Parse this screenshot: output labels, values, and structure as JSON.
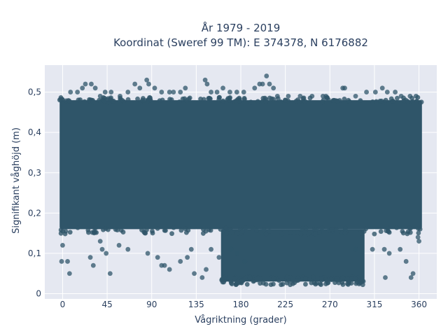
{
  "chart_data": {
    "type": "scatter",
    "title_line1": "År 1979 - 2019",
    "title_line2": "Koordinat (Sweref 99 TM): E 374378, N 6176882",
    "xlabel": "Vågriktning (grader)",
    "ylabel": "Signifikant våghöjd (m)",
    "xlim": [
      -18,
      378
    ],
    "ylim": [
      -0.013,
      0.567
    ],
    "x_ticks": [
      0,
      45,
      90,
      135,
      180,
      225,
      270,
      315,
      360
    ],
    "x_tick_labels": [
      "0",
      "45",
      "90",
      "135",
      "180",
      "225",
      "270",
      "315",
      "360"
    ],
    "y_ticks": [
      0,
      0.1,
      0.2,
      0.3,
      0.4,
      0.5
    ],
    "y_tick_labels": [
      "0",
      "0,1",
      "0,2",
      "0,3",
      "0,4",
      "0,5"
    ],
    "grid": true,
    "marker_color": "#2f5569",
    "plot_bgcolor": "#e5e8f1",
    "dense_regions": [
      {
        "x": [
          -3,
          363
        ],
        "y": [
          0.16,
          0.48
        ]
      },
      {
        "x": [
          160,
          305
        ],
        "y": [
          0.03,
          0.16
        ]
      }
    ],
    "points": [
      [
        0,
        0.12
      ],
      [
        -1,
        0.08
      ],
      [
        5,
        0.08
      ],
      [
        7,
        0.05
      ],
      [
        28,
        0.09
      ],
      [
        31,
        0.07
      ],
      [
        40,
        0.11
      ],
      [
        44,
        0.1
      ],
      [
        48,
        0.05
      ],
      [
        38,
        0.13
      ],
      [
        57,
        0.12
      ],
      [
        66,
        0.11
      ],
      [
        86,
        0.1
      ],
      [
        96,
        0.09
      ],
      [
        100,
        0.07
      ],
      [
        103,
        0.07
      ],
      [
        108,
        0.06
      ],
      [
        119,
        0.08
      ],
      [
        126,
        0.09
      ],
      [
        130,
        0.11
      ],
      [
        141,
        0.04
      ],
      [
        133,
        0.05
      ],
      [
        145,
        0.06
      ],
      [
        150,
        0.11
      ],
      [
        158,
        0.09
      ],
      [
        170,
        0.11
      ],
      [
        176,
        0.1
      ],
      [
        184,
        0.08
      ],
      [
        296,
        0.11
      ],
      [
        313,
        0.11
      ],
      [
        325,
        0.11
      ],
      [
        330,
        0.1
      ],
      [
        326,
        0.04
      ],
      [
        341,
        0.11
      ],
      [
        347,
        0.08
      ],
      [
        354,
        0.05
      ],
      [
        352,
        0.04
      ],
      [
        360,
        0.13
      ],
      [
        359,
        0.14
      ],
      [
        8,
        0.5
      ],
      [
        15,
        0.5
      ],
      [
        20,
        0.51
      ],
      [
        23,
        0.52
      ],
      [
        29,
        0.52
      ],
      [
        33,
        0.51
      ],
      [
        38,
        0.49
      ],
      [
        43,
        0.5
      ],
      [
        49,
        0.5
      ],
      [
        58,
        0.49
      ],
      [
        66,
        0.5
      ],
      [
        73,
        0.52
      ],
      [
        78,
        0.51
      ],
      [
        85,
        0.53
      ],
      [
        87,
        0.52
      ],
      [
        93,
        0.51
      ],
      [
        100,
        0.5
      ],
      [
        108,
        0.5
      ],
      [
        112,
        0.5
      ],
      [
        119,
        0.5
      ],
      [
        124,
        0.51
      ],
      [
        144,
        0.53
      ],
      [
        146,
        0.52
      ],
      [
        150,
        0.5
      ],
      [
        156,
        0.5
      ],
      [
        162,
        0.51
      ],
      [
        169,
        0.5
      ],
      [
        176,
        0.5
      ],
      [
        183,
        0.5
      ],
      [
        194,
        0.51
      ],
      [
        199,
        0.52
      ],
      [
        202,
        0.52
      ],
      [
        206,
        0.54
      ],
      [
        209,
        0.52
      ],
      [
        213,
        0.51
      ],
      [
        217,
        0.49
      ],
      [
        228,
        0.49
      ],
      [
        240,
        0.49
      ],
      [
        252,
        0.49
      ],
      [
        263,
        0.49
      ],
      [
        266,
        0.49
      ],
      [
        283,
        0.51
      ],
      [
        285,
        0.51
      ],
      [
        296,
        0.49
      ],
      [
        307,
        0.5
      ],
      [
        316,
        0.5
      ],
      [
        323,
        0.51
      ],
      [
        328,
        0.5
      ],
      [
        336,
        0.5
      ],
      [
        342,
        0.49
      ],
      [
        351,
        0.49
      ],
      [
        357,
        0.49
      ]
    ]
  }
}
